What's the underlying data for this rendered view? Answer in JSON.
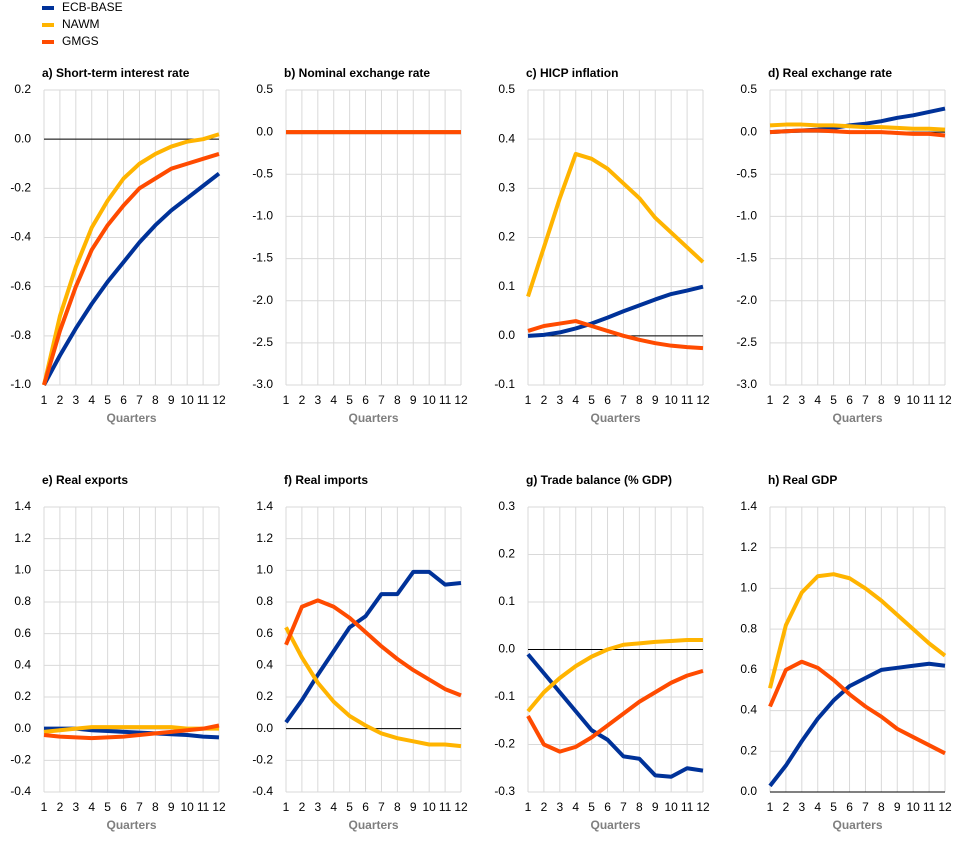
{
  "chart_data": [
    {
      "type": "line",
      "title": "a) Short-term interest rate",
      "x_label": "Quarters",
      "x": [
        1,
        2,
        3,
        4,
        5,
        6,
        7,
        8,
        9,
        10,
        11,
        12
      ],
      "xlim": [
        1,
        12
      ],
      "xticks": [
        1,
        2,
        3,
        4,
        5,
        6,
        7,
        8,
        9,
        10,
        11,
        12
      ],
      "ylim": [
        -1,
        0.2
      ],
      "yticks": [
        0.2,
        {
          "value": 0,
          "label": "0.0"
        },
        -0.2,
        -0.4,
        -0.6,
        -0.8,
        {
          "value": -1,
          "label": "-1.0"
        }
      ],
      "grid": true,
      "series": [
        {
          "name": "ECB-BASE",
          "color": "#003299",
          "values": [
            -1.0,
            -0.88,
            -0.77,
            -0.67,
            -0.58,
            -0.5,
            -0.42,
            -0.35,
            -0.29,
            -0.24,
            -0.19,
            -0.14
          ]
        },
        {
          "name": "NAWM",
          "color": "#ffb400",
          "values": [
            -1.0,
            -0.72,
            -0.52,
            -0.36,
            -0.25,
            -0.16,
            -0.1,
            -0.06,
            -0.03,
            -0.01,
            0.0,
            0.02
          ]
        },
        {
          "name": "GMGS",
          "color": "#ff4b00",
          "values": [
            -1.0,
            -0.78,
            -0.6,
            -0.45,
            -0.35,
            -0.27,
            -0.2,
            -0.16,
            -0.12,
            -0.1,
            -0.08,
            -0.06
          ]
        }
      ]
    },
    {
      "type": "line",
      "title": "b) Nominal exchange rate",
      "x_label": "Quarters",
      "x": [
        1,
        2,
        3,
        4,
        5,
        6,
        7,
        8,
        9,
        10,
        11,
        12
      ],
      "xlim": [
        1,
        12
      ],
      "xticks": [
        1,
        2,
        3,
        4,
        5,
        6,
        7,
        8,
        9,
        10,
        11,
        12
      ],
      "ylim": [
        -3,
        0.5
      ],
      "yticks": [
        0.5,
        {
          "value": 0,
          "label": "0.0"
        },
        -0.5,
        {
          "value": -1,
          "label": "-1.0"
        },
        -1.5,
        {
          "value": -2,
          "label": "-2.0"
        },
        -2.5,
        {
          "value": -3,
          "label": "-3.0"
        }
      ],
      "grid": true,
      "series": [
        {
          "color": "#003299",
          "values": [
            0,
            0,
            0,
            0,
            0,
            0,
            0,
            0,
            0,
            0,
            0,
            0
          ]
        },
        {
          "color": "#ffb400",
          "values": [
            0,
            0,
            0,
            0,
            0,
            0,
            0,
            0,
            0,
            0,
            0,
            0
          ]
        },
        {
          "color": "#ff4b00",
          "values": [
            0,
            0,
            0,
            0,
            0,
            0,
            0,
            0,
            0,
            0,
            0,
            0
          ]
        }
      ]
    },
    {
      "type": "line",
      "title": "c) HICP inflation",
      "x_label": "Quarters",
      "x": [
        1,
        2,
        3,
        4,
        5,
        6,
        7,
        8,
        9,
        10,
        11,
        12
      ],
      "xlim": [
        1,
        12
      ],
      "xticks": [
        1,
        2,
        3,
        4,
        5,
        6,
        7,
        8,
        9,
        10,
        11,
        12
      ],
      "ylim": [
        -0.1,
        0.5
      ],
      "yticks": [
        0.5,
        0.4,
        0.3,
        0.2,
        0.1,
        {
          "value": 0,
          "label": "0.0"
        },
        -0.1
      ],
      "grid": true,
      "series": [
        {
          "color": "#003299",
          "values": [
            0,
            0.002,
            0.007,
            0.015,
            0.025,
            0.037,
            0.05,
            0.062,
            0.074,
            0.085,
            0.092,
            0.1
          ]
        },
        {
          "color": "#ffb400",
          "values": [
            0.08,
            0.18,
            0.28,
            0.37,
            0.36,
            0.34,
            0.31,
            0.28,
            0.24,
            0.21,
            0.18,
            0.15
          ]
        },
        {
          "color": "#ff4b00",
          "values": [
            0.01,
            0.02,
            0.025,
            0.03,
            0.02,
            0.01,
            0,
            -0.008,
            -0.015,
            -0.02,
            -0.023,
            -0.025
          ]
        }
      ]
    },
    {
      "type": "line",
      "title": "d) Real exchange rate",
      "x_label": "Quarters",
      "x": [
        1,
        2,
        3,
        4,
        5,
        6,
        7,
        8,
        9,
        10,
        11,
        12
      ],
      "xlim": [
        1,
        12
      ],
      "xticks": [
        1,
        2,
        3,
        4,
        5,
        6,
        7,
        8,
        9,
        10,
        11,
        12
      ],
      "ylim": [
        -3,
        0.5
      ],
      "yticks": [
        0.5,
        {
          "value": 0,
          "label": "0.0"
        },
        -0.5,
        {
          "value": -1,
          "label": "-1.0"
        },
        -1.5,
        {
          "value": -2,
          "label": "-2.0"
        },
        -2.5,
        {
          "value": -3,
          "label": "-3.0"
        }
      ],
      "grid": true,
      "series": [
        {
          "color": "#003299",
          "values": [
            0,
            0.01,
            0.02,
            0.03,
            0.05,
            0.08,
            0.1,
            0.13,
            0.17,
            0.2,
            0.24,
            0.28
          ]
        },
        {
          "color": "#ffb400",
          "values": [
            0.08,
            0.09,
            0.09,
            0.08,
            0.08,
            0.07,
            0.06,
            0.06,
            0.05,
            0.04,
            0.04,
            0.03
          ]
        },
        {
          "color": "#ff4b00",
          "values": [
            0,
            0.01,
            0.02,
            0.02,
            0.01,
            0,
            0,
            0,
            -0.01,
            -0.02,
            -0.02,
            -0.04
          ]
        }
      ]
    },
    {
      "type": "line",
      "title": "e) Real exports",
      "x_label": "Quarters",
      "x": [
        1,
        2,
        3,
        4,
        5,
        6,
        7,
        8,
        9,
        10,
        11,
        12
      ],
      "xlim": [
        1,
        12
      ],
      "xticks": [
        1,
        2,
        3,
        4,
        5,
        6,
        7,
        8,
        9,
        10,
        11,
        12
      ],
      "ylim": [
        -0.4,
        1.4
      ],
      "yticks": [
        1.4,
        1.2,
        {
          "value": 1,
          "label": "1.0"
        },
        0.8,
        0.6,
        0.4,
        0.2,
        {
          "value": 0,
          "label": "0.0"
        },
        -0.2,
        -0.4
      ],
      "grid": true,
      "series": [
        {
          "color": "#003299",
          "values": [
            0,
            0,
            0,
            -0.01,
            -0.015,
            -0.02,
            -0.025,
            -0.03,
            -0.035,
            -0.04,
            -0.05,
            -0.055
          ]
        },
        {
          "color": "#ffb400",
          "values": [
            -0.02,
            -0.01,
            0,
            0.01,
            0.01,
            0.01,
            0.01,
            0.01,
            0.01,
            0,
            0,
            0
          ]
        },
        {
          "color": "#ff4b00",
          "values": [
            -0.04,
            -0.05,
            -0.055,
            -0.06,
            -0.055,
            -0.05,
            -0.04,
            -0.03,
            -0.02,
            -0.01,
            0,
            0.02
          ]
        }
      ]
    },
    {
      "type": "line",
      "title": "f) Real imports",
      "x_label": "Quarters",
      "x": [
        1,
        2,
        3,
        4,
        5,
        6,
        7,
        8,
        9,
        10,
        11,
        12
      ],
      "xlim": [
        1,
        12
      ],
      "xticks": [
        1,
        2,
        3,
        4,
        5,
        6,
        7,
        8,
        9,
        10,
        11,
        12
      ],
      "ylim": [
        -0.4,
        1.4
      ],
      "yticks": [
        1.4,
        1.2,
        {
          "value": 1,
          "label": "1.0"
        },
        0.8,
        0.6,
        0.4,
        0.2,
        {
          "value": 0,
          "label": "0.0"
        },
        -0.2,
        -0.4
      ],
      "grid": true,
      "series": [
        {
          "color": "#003299",
          "values": [
            0.04,
            0.18,
            0.34,
            0.49,
            0.64,
            0.71,
            0.85,
            0.85,
            0.99,
            0.99,
            0.91,
            0.92
          ]
        },
        {
          "color": "#ffb400",
          "values": [
            0.64,
            0.45,
            0.29,
            0.17,
            0.08,
            0.02,
            -0.03,
            -0.06,
            -0.08,
            -0.1,
            -0.1,
            -0.11
          ]
        },
        {
          "color": "#ff4b00",
          "values": [
            0.53,
            0.77,
            0.81,
            0.77,
            0.7,
            0.61,
            0.52,
            0.44,
            0.37,
            0.31,
            0.25,
            0.21
          ]
        }
      ]
    },
    {
      "type": "line",
      "title": "g) Trade balance (% GDP)",
      "x_label": "Quarters",
      "x": [
        1,
        2,
        3,
        4,
        5,
        6,
        7,
        8,
        9,
        10,
        11,
        12
      ],
      "xlim": [
        1,
        12
      ],
      "xticks": [
        1,
        2,
        3,
        4,
        5,
        6,
        7,
        8,
        9,
        10,
        11,
        12
      ],
      "ylim": [
        -0.3,
        0.3
      ],
      "yticks": [
        0.3,
        0.2,
        0.1,
        {
          "value": 0,
          "label": "0.0"
        },
        -0.1,
        -0.2,
        -0.3
      ],
      "grid": true,
      "series": [
        {
          "color": "#003299",
          "values": [
            -0.01,
            -0.05,
            -0.09,
            -0.13,
            -0.17,
            -0.19,
            -0.225,
            -0.23,
            -0.265,
            -0.268,
            -0.25,
            -0.255
          ]
        },
        {
          "color": "#ffb400",
          "values": [
            -0.13,
            -0.09,
            -0.06,
            -0.035,
            -0.015,
            0,
            0.01,
            0.013,
            0.016,
            0.018,
            0.02,
            0.02
          ]
        },
        {
          "color": "#ff4b00",
          "values": [
            -0.14,
            -0.2,
            -0.215,
            -0.205,
            -0.185,
            -0.16,
            -0.135,
            -0.11,
            -0.09,
            -0.07,
            -0.055,
            -0.045
          ]
        }
      ]
    },
    {
      "type": "line",
      "title": "h) Real GDP",
      "x_label": "Quarters",
      "x": [
        1,
        2,
        3,
        4,
        5,
        6,
        7,
        8,
        9,
        10,
        11,
        12
      ],
      "xlim": [
        1,
        12
      ],
      "xticks": [
        1,
        2,
        3,
        4,
        5,
        6,
        7,
        8,
        9,
        10,
        11,
        12
      ],
      "ylim": [
        0,
        1.4
      ],
      "yticks": [
        1.4,
        1.2,
        {
          "value": 1,
          "label": "1.0"
        },
        0.8,
        0.6,
        0.4,
        0.2,
        {
          "value": 0,
          "label": "0.0"
        }
      ],
      "grid": true,
      "series": [
        {
          "color": "#003299",
          "values": [
            0.03,
            0.13,
            0.25,
            0.36,
            0.45,
            0.52,
            0.56,
            0.6,
            0.61,
            0.62,
            0.63,
            0.62
          ]
        },
        {
          "color": "#ffb400",
          "values": [
            0.51,
            0.82,
            0.98,
            1.06,
            1.07,
            1.05,
            1.0,
            0.94,
            0.87,
            0.8,
            0.73,
            0.67
          ]
        },
        {
          "color": "#ff4b00",
          "values": [
            0.42,
            0.6,
            0.64,
            0.61,
            0.55,
            0.48,
            0.42,
            0.37,
            0.31,
            0.27,
            0.23,
            0.19
          ]
        }
      ]
    }
  ]
}
